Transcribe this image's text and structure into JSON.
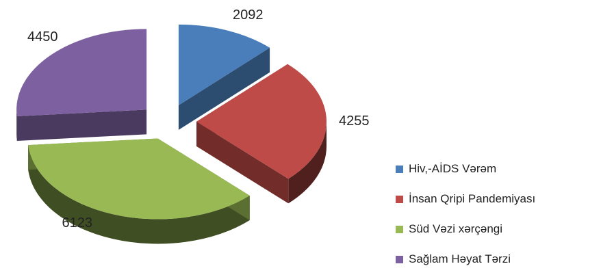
{
  "chart_data": {
    "type": "pie",
    "style": "3d-exploded",
    "title": "",
    "legend_position": "right",
    "series": [
      {
        "name": "Hiv,-AİDS Vərəm",
        "value": 2092,
        "color": "#4a7ebb",
        "label": "2092"
      },
      {
        "name": "İnsan Qripi Pandemiyası",
        "value": 4255,
        "color": "#be4b48",
        "label": "4255"
      },
      {
        "name": "Süd Vəzi xərçəngi",
        "value": 6123,
        "color": "#98b954",
        "label": "6123"
      },
      {
        "name": "Sağlam Həyat Tərzi",
        "value": 4450,
        "color": "#7d60a0",
        "label": "4450"
      }
    ]
  }
}
